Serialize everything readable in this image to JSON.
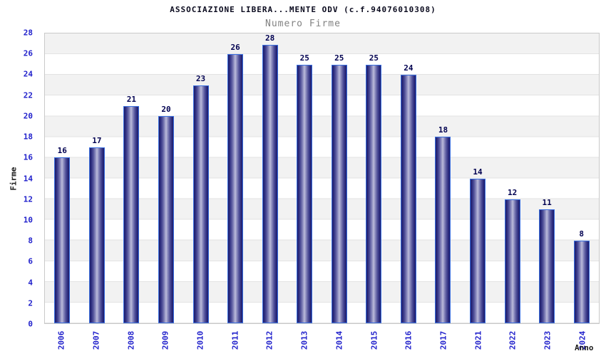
{
  "header": {
    "title": "ASSOCIAZIONE LIBERA...MENTE ODV (c.f.94076010308)",
    "subtitle": "Numero Firme"
  },
  "chart_data": {
    "type": "bar",
    "title": "ASSOCIAZIONE LIBERA...MENTE ODV (c.f.94076010308)",
    "subtitle": "Numero Firme",
    "xlabel": "Anno",
    "ylabel": "Firme",
    "categories": [
      "2006",
      "2007",
      "2008",
      "2009",
      "2010",
      "2011",
      "2012",
      "2013",
      "2014",
      "2015",
      "2016",
      "2017",
      "2021",
      "2022",
      "2023",
      "2024"
    ],
    "values": [
      16,
      17,
      21,
      20,
      23,
      26,
      28,
      25,
      25,
      25,
      24,
      18,
      14,
      12,
      11,
      8
    ],
    "ylim": [
      0,
      28
    ],
    "ytick_step": 2,
    "grid": "horizontal-bands",
    "legend": "none",
    "colors": {
      "tick_label": "#2222cc",
      "value_label": "#000050",
      "bar_edge_dark": "#1d1d6a",
      "bar_center_light": "#bcbcda",
      "bar_outline": "#3a6fe0",
      "band_gray": "#f2f2f2",
      "band_white": "#ffffff",
      "plot_border": "#c9c9c9",
      "title_text": "#0a0a1e",
      "subtitle_text": "#828282"
    }
  }
}
